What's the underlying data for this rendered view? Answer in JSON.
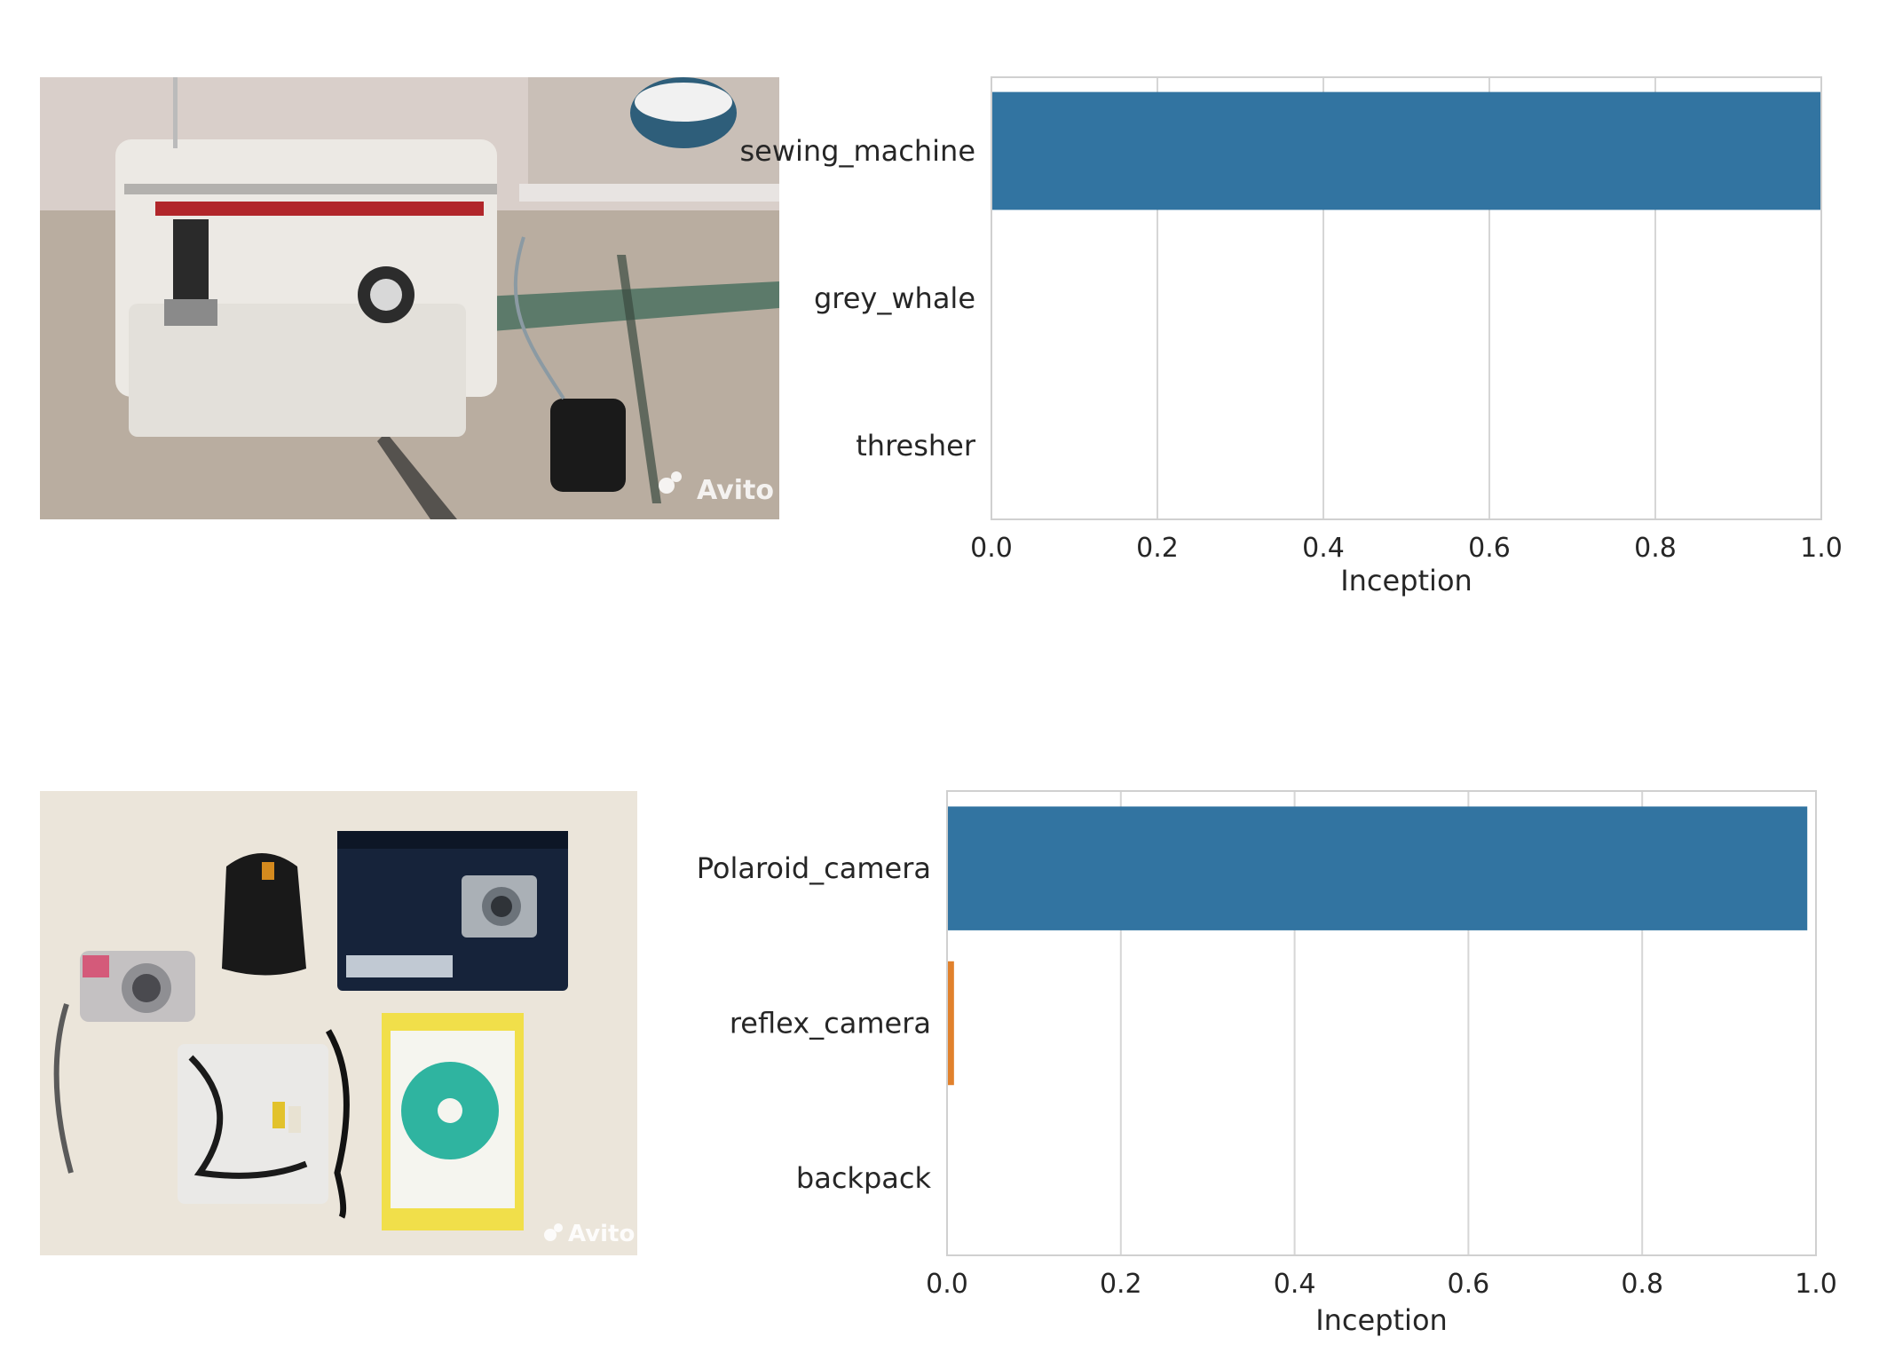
{
  "watermark": "Avito",
  "colors": {
    "primary": "#3274a1",
    "secondary": "#e1812c",
    "grid": "#d6d6d6",
    "spine": "#d0d0d0"
  },
  "chart_data": [
    {
      "type": "bar",
      "orientation": "horizontal",
      "categories": [
        "sewing_machine",
        "grey_whale",
        "thresher"
      ],
      "values": [
        1.0,
        0.0,
        0.0
      ],
      "colors": [
        "#3274a1",
        "#e1812c",
        "#3a923a"
      ],
      "xlabel": "Inception",
      "ylabel": "",
      "xlim": [
        0,
        1
      ],
      "xticks": [
        "0.0",
        "0.2",
        "0.4",
        "0.6",
        "0.8",
        "1.0"
      ],
      "grid": true
    },
    {
      "type": "bar",
      "orientation": "horizontal",
      "categories": [
        "Polaroid_camera",
        "reflex_camera",
        "backpack"
      ],
      "values": [
        0.99,
        0.008,
        0.0
      ],
      "colors": [
        "#3274a1",
        "#e1812c",
        "#3a923a"
      ],
      "xlabel": "Inception",
      "ylabel": "",
      "xlim": [
        0,
        1
      ],
      "xticks": [
        "0.0",
        "0.2",
        "0.4",
        "0.6",
        "0.8",
        "1.0"
      ],
      "grid": true
    }
  ]
}
